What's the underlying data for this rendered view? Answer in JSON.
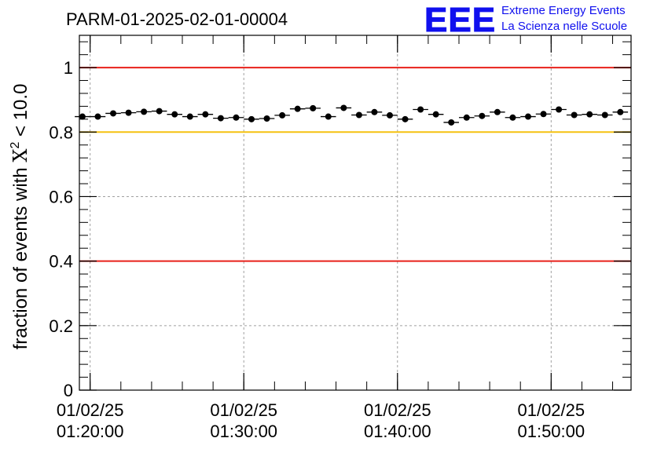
{
  "chart_data": {
    "type": "scatter",
    "title": "PARM-01-2025-02-01-00004",
    "ylabel": {
      "prefix": "fraction of events with ",
      "symbol": "X",
      "superscript": "2",
      "suffix": " < 10.0"
    },
    "xlabel": "",
    "ylim": [
      0,
      1.1
    ],
    "xlim": [
      -0.7,
      35.2
    ],
    "x_unit": "minutes after 01/02/25 01:20:00",
    "y_ticks": [
      {
        "value": 0,
        "label": "0"
      },
      {
        "value": 0.2,
        "label": "0.2"
      },
      {
        "value": 0.4,
        "label": "0.4"
      },
      {
        "value": 0.6,
        "label": "0.6"
      },
      {
        "value": 0.8,
        "label": "0.8"
      },
      {
        "value": 1,
        "label": "1"
      }
    ],
    "x_ticks": [
      {
        "value": 0,
        "date": "01/02/25",
        "time": "01:20:00"
      },
      {
        "value": 10,
        "date": "01/02/25",
        "time": "01:30:00"
      },
      {
        "value": 20,
        "date": "01/02/25",
        "time": "01:40:00"
      },
      {
        "value": 30,
        "date": "01/02/25",
        "time": "01:50:00"
      }
    ],
    "reference_lines": [
      {
        "y": 1.0,
        "color": "#e8201a"
      },
      {
        "y": 0.8,
        "color": "#f5c211"
      },
      {
        "y": 0.4,
        "color": "#e8201a"
      }
    ],
    "series": [
      {
        "name": "fraction",
        "x": [
          -0.5,
          0.5,
          1.5,
          2.5,
          3.5,
          4.5,
          5.5,
          6.5,
          7.5,
          8.5,
          9.5,
          10.5,
          11.5,
          12.5,
          13.5,
          14.5,
          15.5,
          16.5,
          17.5,
          18.5,
          19.5,
          20.5,
          21.5,
          22.5,
          23.5,
          24.5,
          25.5,
          26.5,
          27.5,
          28.5,
          29.5,
          30.5,
          31.5,
          32.5,
          33.5,
          34.5
        ],
        "values": [
          0.848,
          0.848,
          0.858,
          0.86,
          0.863,
          0.865,
          0.855,
          0.848,
          0.855,
          0.843,
          0.845,
          0.84,
          0.842,
          0.852,
          0.872,
          0.874,
          0.848,
          0.875,
          0.853,
          0.862,
          0.852,
          0.84,
          0.87,
          0.855,
          0.83,
          0.845,
          0.85,
          0.862,
          0.845,
          0.848,
          0.856,
          0.87,
          0.853,
          0.855,
          0.853,
          0.862
        ],
        "x_err": 0.5,
        "y_err": 0.004
      }
    ]
  },
  "logo": {
    "mark": "EEE",
    "line1": "Extreme Energy Events",
    "line2": "La Scienza nelle Scuole"
  },
  "colors": {
    "logo": "#1010ee",
    "grid": "#a0a0a0",
    "marker": "#000000"
  }
}
